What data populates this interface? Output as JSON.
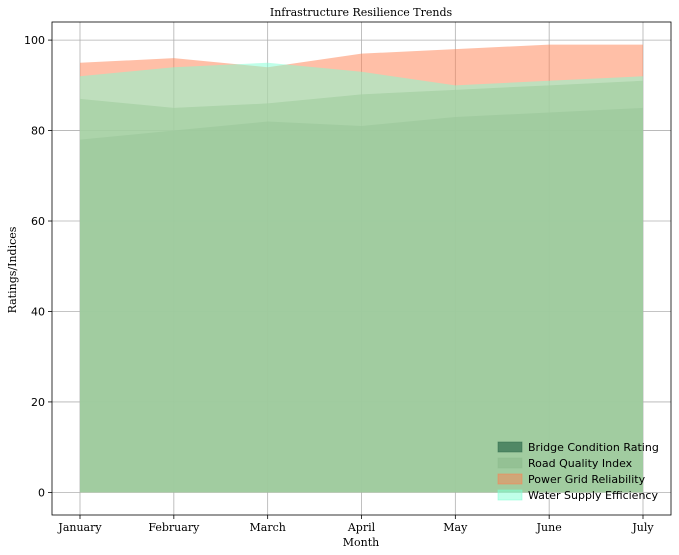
{
  "chart_data": {
    "type": "area",
    "title": "Infrastructure Resilience Trends",
    "xlabel": "Month",
    "ylabel": "Ratings/Indices",
    "categories": [
      "January",
      "February",
      "March",
      "April",
      "May",
      "June",
      "July"
    ],
    "ylim": [
      -5,
      104
    ],
    "yticks": [
      0,
      20,
      40,
      60,
      80,
      100
    ],
    "grid": true,
    "legend_position": "lower-right",
    "series": [
      {
        "name": "Bridge Condition Rating",
        "values": [
          78,
          80,
          82,
          81,
          83,
          84,
          85
        ],
        "color": "#2e6b4c",
        "alpha": 0.7
      },
      {
        "name": "Road Quality Index",
        "values": [
          87,
          85,
          86,
          88,
          89,
          90,
          91
        ],
        "color": "#8fbc8f",
        "alpha": 0.7
      },
      {
        "name": "Power Grid Reliability",
        "values": [
          95,
          96,
          94,
          97,
          98,
          99,
          99
        ],
        "color": "#ff7f50",
        "alpha": 0.5
      },
      {
        "name": "Water Supply Efficiency",
        "values": [
          92,
          94,
          95,
          93,
          90,
          91,
          92
        ],
        "color": "#7fffd4",
        "alpha": 0.5
      }
    ]
  }
}
